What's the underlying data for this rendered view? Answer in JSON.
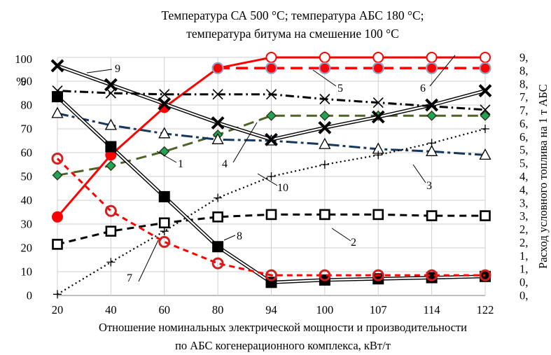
{
  "chart_data": {
    "type": "line",
    "title": [
      "Температура СА 500 °С; температура АБС 180 °С;",
      "температура битума на смешение 100 °С"
    ],
    "xlabel": [
      "Отношение номинальных электрической мощности и производительности",
      "по АБС когенерационного комплекса, кВт/т"
    ],
    "ylabel_left": "%",
    "ylabel_right": "Расход условного топлива на 1 т АБС",
    "categories": [
      "20",
      "40",
      "60",
      "80",
      "94",
      "100",
      "107",
      "114",
      "122"
    ],
    "ylim_left": [
      0,
      100
    ],
    "yticks_left": [
      "0",
      "10",
      "20",
      "30",
      "40",
      "50",
      "60",
      "70",
      "80",
      "90",
      "100"
    ],
    "yticks_right": [
      "0,",
      "0,",
      "1,",
      "1,",
      "2,",
      "2,",
      "3,",
      "3,",
      "4,",
      "4,",
      "5,",
      "5,",
      "6,",
      "6,",
      "7,",
      "7,",
      "8,",
      "8,",
      "9,"
    ],
    "grid": true,
    "series": [
      {
        "label": "1",
        "color": "#4f6228",
        "values": [
          50.5,
          54.5,
          60.5,
          67.5,
          75.5,
          75.5,
          75.5,
          75.5,
          75.5
        ]
      },
      {
        "label": "2",
        "color": "#000000",
        "values": [
          21.5,
          27,
          30.5,
          33,
          34,
          34,
          34,
          33.5,
          33.5
        ]
      },
      {
        "label": "3",
        "color": "#17375e",
        "values": [
          76.5,
          71.5,
          68,
          65.5,
          65,
          63.5,
          61.5,
          60.5,
          59
        ]
      },
      {
        "label": "4",
        "color": "#ff0000",
        "values": [
          33,
          59,
          79,
          95.5,
          100,
          100,
          100,
          100,
          100
        ]
      },
      {
        "label": "5",
        "color": "#ff0000",
        "values": [
          null,
          null,
          null,
          95.5,
          95.5,
          95.5,
          95.5,
          95.5,
          95.5
        ]
      },
      {
        "label": "6",
        "color": "#ff0000",
        "values": [
          57.5,
          35.5,
          22.5,
          13.5,
          8.5,
          8.5,
          8.5,
          8.5,
          8.5
        ]
      },
      {
        "label": "7",
        "color": "#000000",
        "values": [
          0.5,
          14,
          27,
          41,
          50,
          55,
          59,
          64,
          70
        ]
      },
      {
        "label": "8",
        "color": "#000000",
        "values": [
          83.5,
          62.5,
          41.5,
          20.5,
          5.5,
          6.5,
          7,
          7.5,
          8
        ]
      },
      {
        "label": "9",
        "color": "#000000",
        "values": [
          96.5,
          88.5,
          80.5,
          72.5,
          65.5,
          70.5,
          75,
          80,
          86
        ]
      },
      {
        "label": "10",
        "color": "#000000",
        "values": [
          86,
          85,
          84.5,
          84.5,
          84.5,
          82.5,
          81,
          79.5,
          78
        ]
      }
    ]
  }
}
